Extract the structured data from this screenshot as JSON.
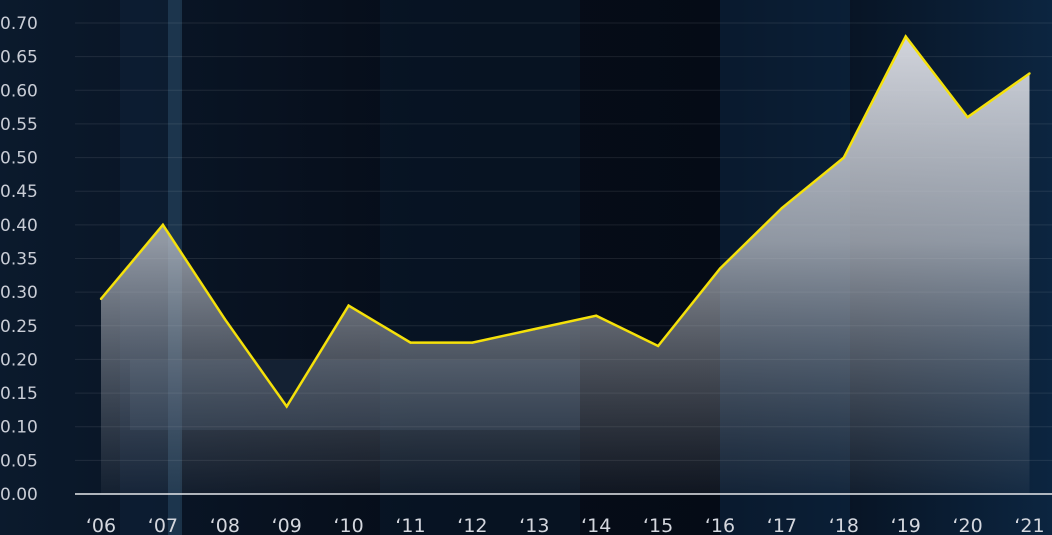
{
  "chart_data": {
    "type": "area",
    "title": "",
    "xlabel": "",
    "ylabel": "",
    "categories": [
      "‘06",
      "‘07",
      "‘08",
      "‘09",
      "‘10",
      "‘11",
      "‘12",
      "‘13",
      "‘14",
      "‘15",
      "‘16",
      "‘17",
      "‘18",
      "‘19",
      "‘20",
      "‘21"
    ],
    "series": [
      {
        "values": [
          0.29,
          0.4,
          0.26,
          0.13,
          0.28,
          0.225,
          0.225,
          0.245,
          0.265,
          0.22,
          0.335,
          0.425,
          0.5,
          0.68,
          0.56,
          0.625
        ]
      }
    ],
    "ylim": [
      0,
      0.7
    ],
    "yticks": [
      "0.00",
      "0.05",
      "0.10",
      "0.15",
      "0.20",
      "0.25",
      "0.30",
      "0.35",
      "0.40",
      "0.45",
      "0.50",
      "0.55",
      "0.60",
      "0.65",
      "0.70"
    ],
    "grid": true,
    "legend": "none",
    "colors": {
      "line": "#f5e10a",
      "area": "#d4d7df",
      "axis": "#e6e8ec",
      "background": "#050a14"
    }
  }
}
